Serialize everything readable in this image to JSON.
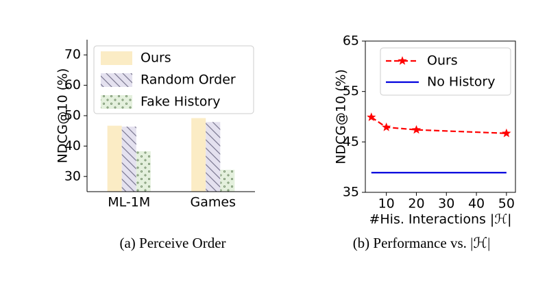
{
  "chart_data": [
    {
      "type": "bar",
      "caption": "(a) Perceive Order",
      "ylabel": "NDCG@10 (%)",
      "categories": [
        "ML-1M",
        "Games"
      ],
      "series": [
        {
          "name": "Ours",
          "color": "#fbecc5",
          "values": [
            46.7,
            49.2
          ]
        },
        {
          "name": "Random Order",
          "color": "#e4e1ef",
          "hatch": "\\",
          "values": [
            46.4,
            47.9
          ]
        },
        {
          "name": "Fake History",
          "color": "#e4f0dd",
          "hatch": ".",
          "values": [
            38.3,
            32.2
          ]
        }
      ],
      "ylim": [
        25,
        75
      ],
      "yticks": [
        30,
        40,
        50,
        60,
        70
      ],
      "legend": "upper left"
    },
    {
      "type": "line",
      "caption": "(b) Performance vs. |ℋ|",
      "ylabel": "NDCG@10 (%)",
      "xlabel": "#His. Interactions |ℋ|",
      "series": [
        {
          "name": "Ours",
          "color": "#ff0000",
          "dashed": true,
          "marker": "*",
          "x": [
            5,
            10,
            20,
            50
          ],
          "values": [
            49.9,
            47.9,
            47.4,
            46.7
          ]
        },
        {
          "name": "No History",
          "color": "#0000dd",
          "x": [
            5,
            50
          ],
          "values": [
            38.9,
            38.9
          ]
        }
      ],
      "xlim": [
        3,
        53
      ],
      "xticks": [
        10,
        20,
        30,
        40,
        50
      ],
      "ylim": [
        35,
        65
      ],
      "yticks": [
        35,
        45,
        55,
        65
      ],
      "legend": "upper right"
    }
  ]
}
